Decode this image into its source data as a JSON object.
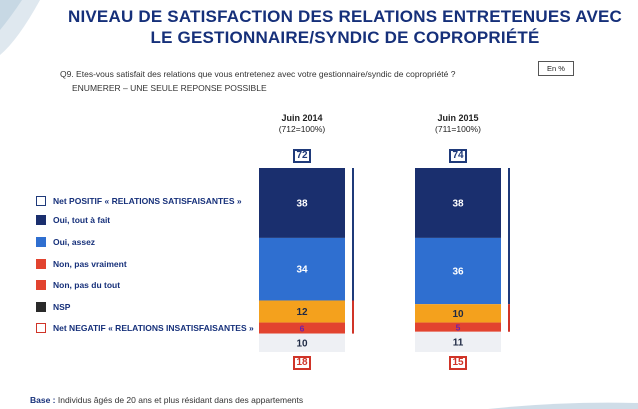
{
  "header": {
    "title_line1": "Niveau de satisfaction des relations entretenues avec",
    "title_line2": "le gestionnaire/syndic de copropriété"
  },
  "question": "Q9. Etes-vous satisfait des relations que vous entretenez avec votre gestionnaire/syndic de copropriété ?",
  "instruction": "ENUMERER – UNE SEULE REPONSE POSSIBLE",
  "unit_label": "En %",
  "base_label": "Base :",
  "base_text": "Individus âgés de 20 ans et plus résidant dans des appartements",
  "colors": {
    "tout_a_fait": "#1a2f6e",
    "assez": "#2f6fd0",
    "pas_vraiment": "#f4a11d",
    "pas_du_tout": "#e2432f",
    "nsp": "#eef0f4",
    "positif": "#1f3a7a",
    "negatif": "#d03428"
  },
  "legend": [
    {
      "label": "Net POSITIF « RELATIONS SATISFAISANTES »",
      "color": "#1f3a7a",
      "outline": true
    },
    {
      "label": "Oui, tout à fait",
      "color": "#1a2f6e",
      "outline": false
    },
    {
      "label": "Oui, assez",
      "color": "#2f6fd0",
      "outline": false
    },
    {
      "label": "Non, pas vraiment",
      "color": "#e2432f",
      "outline": false
    },
    {
      "label": "Non, pas du tout",
      "color": "#e2432f",
      "outline": false
    },
    {
      "label": "NSP",
      "color": "#2a2a2a",
      "outline": false
    },
    {
      "label": "Net NEGATIF « RELATIONS INSATISFAISANTES »",
      "color": "#d03428",
      "outline": true
    }
  ],
  "chart_data": {
    "type": "bar",
    "stacked": true,
    "categories": [
      "Juin 2014",
      "Juin 2015"
    ],
    "category_subtitles": [
      "(712=100%)",
      "(711=100%)"
    ],
    "series": [
      {
        "name": "Oui, tout à fait",
        "values": [
          38,
          38
        ]
      },
      {
        "name": "Oui, assez",
        "values": [
          34,
          36
        ]
      },
      {
        "name": "Non, pas vraiment",
        "values": [
          12,
          10
        ]
      },
      {
        "name": "Non, pas du tout",
        "values": [
          6,
          5
        ]
      },
      {
        "name": "NSP",
        "values": [
          10,
          11
        ]
      }
    ],
    "net_positive": [
      72,
      74
    ],
    "net_negative": [
      18,
      15
    ],
    "ylim": [
      0,
      100
    ]
  }
}
